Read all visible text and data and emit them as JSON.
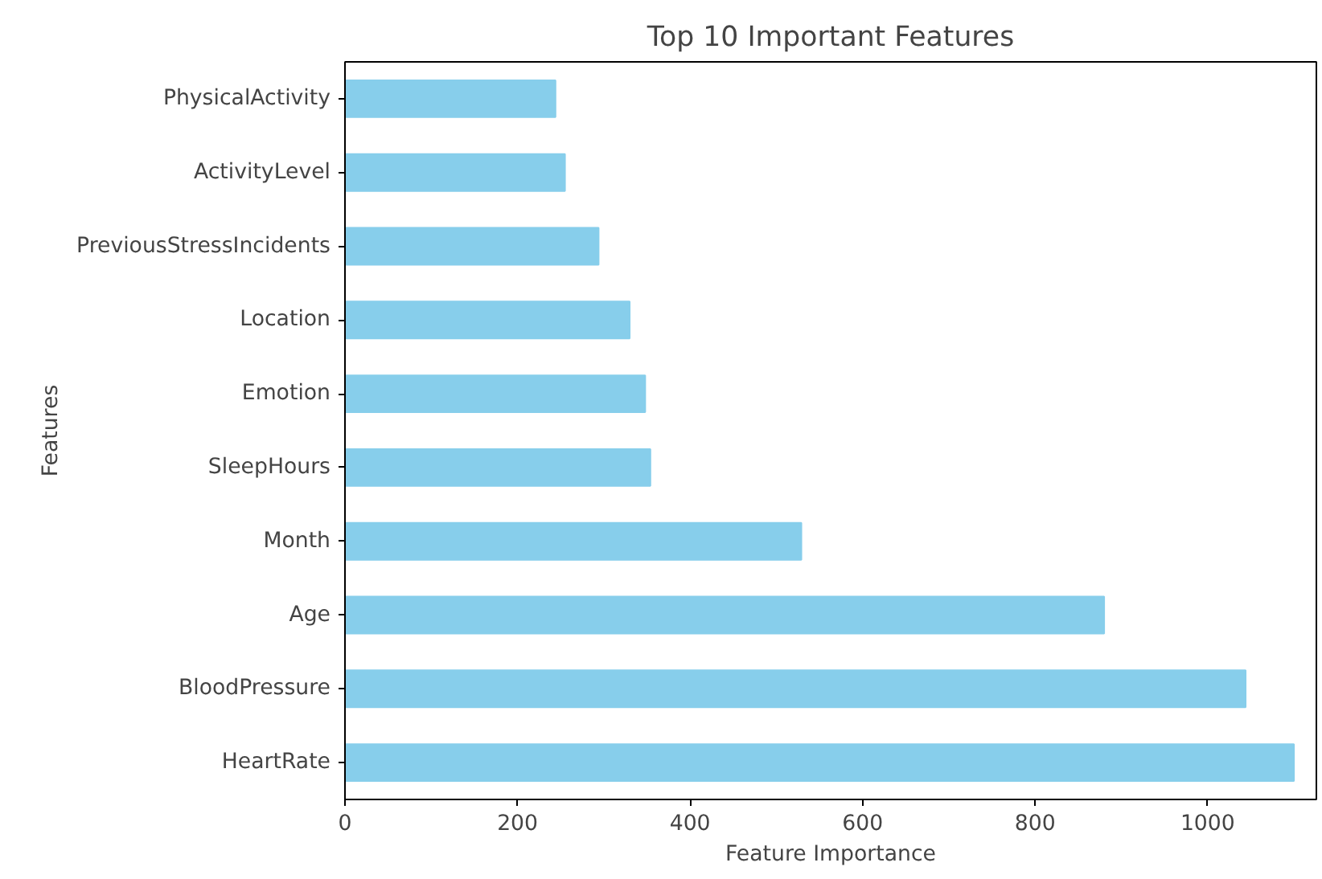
{
  "chart_data": {
    "type": "bar",
    "orientation": "horizontal",
    "title": "Top 10 Important Features",
    "xlabel": "Feature Importance",
    "ylabel": "Features",
    "categories": [
      "PhysicalActivity",
      "ActivityLevel",
      "PreviousStressIncidents",
      "Location",
      "Emotion",
      "SleepHours",
      "Month",
      "Age",
      "BloodPressure",
      "HeartRate"
    ],
    "values": [
      244,
      255,
      294,
      330,
      348,
      354,
      529,
      880,
      1044,
      1100
    ],
    "color": "#87ceeb",
    "xlim": [
      0,
      1126
    ],
    "xticks": [
      0,
      200,
      400,
      600,
      800,
      1000
    ],
    "grid": false
  }
}
